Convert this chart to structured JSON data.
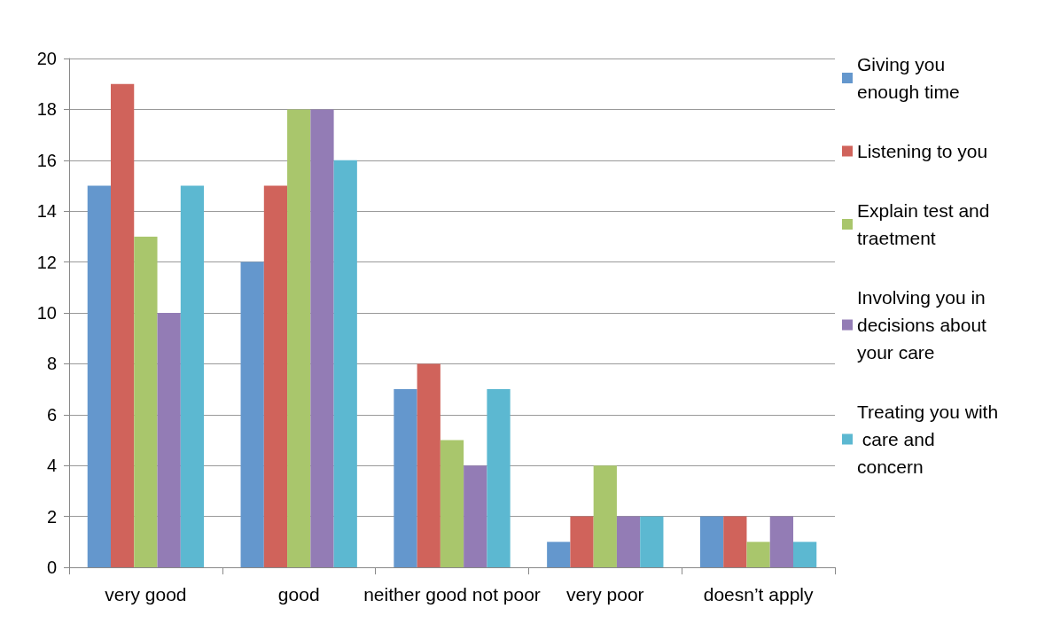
{
  "chart_data": {
    "type": "bar",
    "categories": [
      "very good",
      "good",
      "neither good not poor",
      "very poor",
      "doesn’t apply"
    ],
    "series": [
      {
        "name": "Giving you enough time",
        "color": "#6497cd",
        "values": [
          15,
          12,
          7,
          1,
          2
        ]
      },
      {
        "name": "Listening to you",
        "color": "#d0635b",
        "values": [
          19,
          15,
          8,
          2,
          2
        ]
      },
      {
        "name": "Explain test and traetment",
        "color": "#a9c66c",
        "values": [
          13,
          18,
          5,
          4,
          1
        ]
      },
      {
        "name": "Involving you in decisions about your care",
        "color": "#937cb5",
        "values": [
          10,
          18,
          4,
          2,
          2
        ]
      },
      {
        "name": "Treating you with care and concern",
        "color": "#5cb8d1",
        "values": [
          15,
          16,
          7,
          2,
          1
        ]
      }
    ],
    "ylim": [
      0,
      20
    ],
    "yticks": [
      0,
      2,
      4,
      6,
      8,
      10,
      12,
      14,
      16,
      18,
      20
    ],
    "grid": "y",
    "legend": "right"
  }
}
